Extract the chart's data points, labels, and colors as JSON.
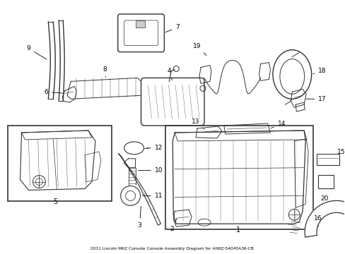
{
  "title": "2011 Lincoln MKZ Console Console Assembly Diagram for AH6Z-54045A36-CB",
  "background_color": "#ffffff",
  "line_color": "#333333",
  "fig_width": 4.89,
  "fig_height": 3.6,
  "dpi": 100
}
